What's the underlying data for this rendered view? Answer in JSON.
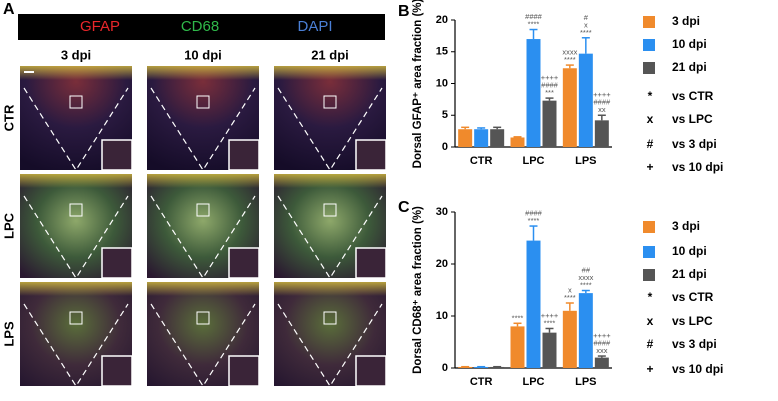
{
  "figure_a": {
    "panel": "A",
    "channels": [
      {
        "label": "GFAP",
        "color": "#e8262a"
      },
      {
        "label": "CD68",
        "color": "#2fb84a"
      },
      {
        "label": "DAPI",
        "color": "#4a7fd6"
      }
    ],
    "columns": [
      "3 dpi",
      "10 dpi",
      "21 dpi"
    ],
    "rows": [
      "CTR",
      "LPC",
      "LPS"
    ]
  },
  "chart_data": [
    {
      "type": "bar",
      "panel": "B",
      "y_label": "Dorsal GFAP⁺ area fraction (%)",
      "categories": [
        "CTR",
        "LPC",
        "LPS"
      ],
      "series": [
        {
          "name": "3 dpi",
          "color": "#f08a2c",
          "values": [
            2.8,
            1.5,
            12.4
          ],
          "errors": [
            0.3,
            0.1,
            0.5
          ],
          "annotations": [
            null,
            null,
            [
              "xxxx",
              "****"
            ]
          ]
        },
        {
          "name": "10 dpi",
          "color": "#2b8ff0",
          "values": [
            2.8,
            17.0,
            14.7
          ],
          "errors": [
            0.2,
            1.5,
            2.5
          ],
          "annotations": [
            null,
            [
              "####",
              "****"
            ],
            [
              "#",
              "x",
              "****"
            ]
          ]
        },
        {
          "name": "21 dpi",
          "color": "#555555",
          "values": [
            2.8,
            7.3,
            4.2
          ],
          "errors": [
            0.3,
            0.4,
            0.8
          ],
          "annotations": [
            null,
            [
              "++++",
              "####",
              "***"
            ],
            [
              "++++",
              "####",
              "xx"
            ]
          ]
        }
      ],
      "ylim": [
        0,
        20
      ],
      "yticks": [
        0,
        5,
        10,
        15,
        20
      ],
      "legend_key": [
        {
          "symbol": "*",
          "label": "vs CTR"
        },
        {
          "symbol": "x",
          "label": "vs LPC"
        },
        {
          "symbol": "#",
          "label": "vs 3 dpi"
        },
        {
          "symbol": "+",
          "label": "vs 10 dpi"
        }
      ]
    },
    {
      "type": "bar",
      "panel": "C",
      "y_label": "Dorsal CD68⁺ area fraction (%)",
      "categories": [
        "CTR",
        "LPC",
        "LPS"
      ],
      "series": [
        {
          "name": "3 dpi",
          "color": "#f08a2c",
          "values": [
            0.2,
            8.0,
            11.0
          ],
          "errors": [
            0.05,
            0.6,
            1.5
          ],
          "annotations": [
            null,
            [
              "****"
            ],
            [
              "x",
              "****"
            ]
          ]
        },
        {
          "name": "10 dpi",
          "color": "#2b8ff0",
          "values": [
            0.2,
            24.5,
            14.4
          ],
          "errors": [
            0.05,
            2.8,
            0.5
          ],
          "annotations": [
            null,
            [
              "####",
              "****"
            ],
            [
              "##",
              "xxxx",
              "****"
            ]
          ]
        },
        {
          "name": "21 dpi",
          "color": "#555555",
          "values": [
            0.2,
            6.8,
            2.0
          ],
          "errors": [
            0.05,
            0.8,
            0.3
          ],
          "annotations": [
            null,
            [
              "++++",
              "****"
            ],
            [
              "++++",
              "####",
              "xxx"
            ]
          ]
        }
      ],
      "ylim": [
        0,
        30
      ],
      "yticks": [
        0,
        10,
        20,
        30
      ],
      "legend_key": [
        {
          "symbol": "*",
          "label": "vs CTR"
        },
        {
          "symbol": "x",
          "label": "vs LPC"
        },
        {
          "symbol": "#",
          "label": "vs 3 dpi"
        },
        {
          "symbol": "+",
          "label": "vs 10 dpi"
        }
      ]
    }
  ]
}
